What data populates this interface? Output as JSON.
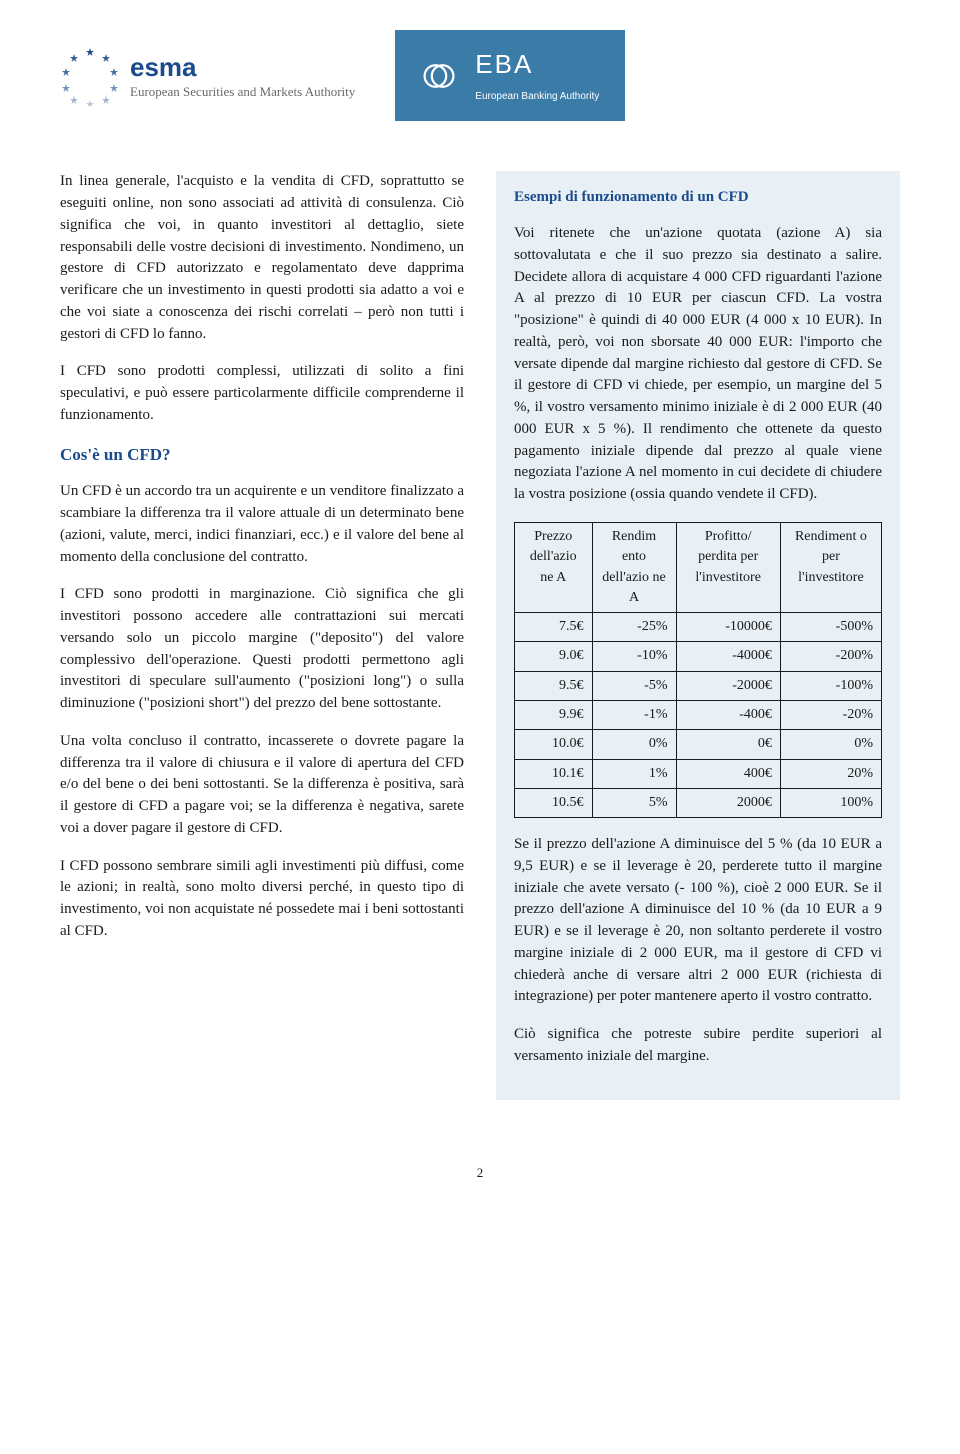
{
  "header": {
    "esma_name": "esma",
    "esma_subtitle": "European Securities and Markets Authority",
    "eba_name": "EBA",
    "eba_subtitle": "European Banking Authority"
  },
  "left": {
    "p1": "In linea generale, l'acquisto e la vendita di CFD, soprattutto se eseguiti online, non sono associati ad attività di consulenza. Ciò significa che voi, in quanto investitori al dettaglio, siete responsabili delle vostre decisioni di investimento. Nondimeno, un gestore di CFD autorizzato e regolamentato deve dapprima verificare che un investimento in questi prodotti sia adatto a voi e che voi siate a conoscenza dei rischi correlati – però non tutti i gestori di CFD lo fanno.",
    "p2": "I CFD sono prodotti complessi, utilizzati di solito a fini speculativi, e può essere particolarmente difficile comprenderne il funzionamento.",
    "h2": "Cos'è un CFD?",
    "p3": "Un CFD è un accordo tra un acquirente e un venditore finalizzato a scambiare la differenza tra il valore attuale di un determinato bene (azioni, valute, merci, indici finanziari, ecc.) e il valore del bene al momento della conclusione del contratto.",
    "p4": "I CFD sono prodotti in marginazione. Ciò significa che gli investitori possono accedere alle contrattazioni sui mercati versando solo un piccolo margine (\"deposito\") del valore complessivo dell'operazione. Questi prodotti permettono agli investitori di speculare sull'aumento (\"posizioni long\") o sulla diminuzione (\"posizioni short\") del prezzo del bene sottostante.",
    "p5": "Una volta concluso il contratto, incasserete o dovrete pagare la differenza tra il valore di chiusura e il valore di apertura del CFD e/o del bene o dei beni sottostanti. Se la differenza è positiva, sarà il gestore di CFD a pagare voi; se la differenza è negativa, sarete voi a dover pagare il gestore di CFD.",
    "p6": "I CFD possono sembrare simili agli investimenti più diffusi, come le azioni; in realtà, sono molto diversi perché, in questo tipo di investimento, voi non acquistate né possedete mai i beni sottostanti al CFD."
  },
  "right": {
    "box_title": "Esempi di funzionamento di un CFD",
    "box_p1": "Voi ritenete che un'azione quotata (azione A) sia sottovalutata e che il suo prezzo sia destinato a salire. Decidete allora di acquistare 4 000 CFD riguardanti l'azione A al prezzo di 10 EUR per ciascun CFD. La vostra \"posizione\" è quindi di 40 000 EUR (4 000 x 10 EUR). In realtà, però, voi non sborsate 40 000 EUR: l'importo che versate dipende dal margine richiesto dal gestore di CFD. Se il gestore di CFD vi chiede, per esempio, un margine del 5 %, il vostro versamento minimo iniziale è di 2 000 EUR (40 000 EUR x 5 %). Il rendimento che ottenete da questo pagamento iniziale dipende dal prezzo al quale viene negoziata l'azione A nel momento in cui decidete di chiudere la vostra posizione (ossia quando vendete il CFD).",
    "table": {
      "headers": [
        "Prezzo dell'azio ne A",
        "Rendim ento dell'azio ne A",
        "Profitto/ perdita per l'investitore",
        "Rendiment o per l'investitore"
      ],
      "rows": [
        [
          "7.5€",
          "-25%",
          "-10000€",
          "-500%"
        ],
        [
          "9.0€",
          "-10%",
          "-4000€",
          "-200%"
        ],
        [
          "9.5€",
          "-5%",
          "-2000€",
          "-100%"
        ],
        [
          "9.9€",
          "-1%",
          "-400€",
          "-20%"
        ],
        [
          "10.0€",
          "0%",
          "0€",
          "0%"
        ],
        [
          "10.1€",
          "1%",
          "400€",
          "20%"
        ],
        [
          "10.5€",
          "5%",
          "2000€",
          "100%"
        ]
      ]
    },
    "box_p2": "Se il prezzo dell'azione A diminuisce del 5 % (da 10 EUR a 9,5 EUR) e se il leverage è 20, perderete tutto il margine iniziale che avete versato (- 100 %), cioè 2 000 EUR. Se il prezzo dell'azione A diminuisce del 10 % (da 10 EUR a 9 EUR) e se il leverage è 20, non soltanto perderete il vostro margine iniziale di 2 000 EUR, ma il gestore di CFD vi chiederà anche di versare altri 2 000 EUR (richiesta di integrazione) per poter mantenere aperto il vostro contratto.",
    "box_p3": "Ciò significa che potreste subire perdite superiori al versamento iniziale del margine."
  },
  "page_number": "2",
  "colors": {
    "heading": "#1a4b8c",
    "box_bg": "#e8f0f5",
    "eba_bg": "#3b7ba8",
    "star": "#1a4b8c"
  }
}
